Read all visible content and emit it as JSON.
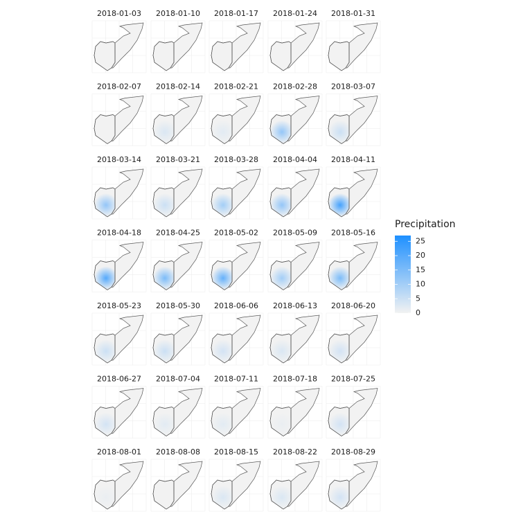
{
  "chart_data": {
    "type": "facet-map",
    "legend_title": "Precipitation",
    "colors": [
      "#f2f2f2",
      "#1e90ff"
    ],
    "lim": [
      0,
      27
    ],
    "ticks": [
      0,
      5,
      10,
      15,
      20,
      25
    ],
    "panels": [
      {
        "title": "2018-01-03",
        "peak": 0
      },
      {
        "title": "2018-01-10",
        "peak": 0
      },
      {
        "title": "2018-01-17",
        "peak": 0
      },
      {
        "title": "2018-01-24",
        "peak": 0
      },
      {
        "title": "2018-01-31",
        "peak": 0
      },
      {
        "title": "2018-02-07",
        "peak": 0
      },
      {
        "title": "2018-02-14",
        "peak": 3
      },
      {
        "title": "2018-02-21",
        "peak": 2
      },
      {
        "title": "2018-02-28",
        "peak": 12
      },
      {
        "title": "2018-03-07",
        "peak": 5
      },
      {
        "title": "2018-03-14",
        "peak": 12
      },
      {
        "title": "2018-03-21",
        "peak": 5
      },
      {
        "title": "2018-03-28",
        "peak": 10
      },
      {
        "title": "2018-04-04",
        "peak": 12
      },
      {
        "title": "2018-04-11",
        "peak": 22
      },
      {
        "title": "2018-04-18",
        "peak": 20
      },
      {
        "title": "2018-04-25",
        "peak": 15
      },
      {
        "title": "2018-05-02",
        "peak": 18
      },
      {
        "title": "2018-05-09",
        "peak": 10
      },
      {
        "title": "2018-05-16",
        "peak": 15
      },
      {
        "title": "2018-05-23",
        "peak": 5
      },
      {
        "title": "2018-05-30",
        "peak": 5
      },
      {
        "title": "2018-06-06",
        "peak": 4
      },
      {
        "title": "2018-06-13",
        "peak": 3
      },
      {
        "title": "2018-06-20",
        "peak": 4
      },
      {
        "title": "2018-06-27",
        "peak": 4
      },
      {
        "title": "2018-07-04",
        "peak": 2
      },
      {
        "title": "2018-07-11",
        "peak": 2
      },
      {
        "title": "2018-07-18",
        "peak": 1
      },
      {
        "title": "2018-07-25",
        "peak": 4
      },
      {
        "title": "2018-08-01",
        "peak": 1
      },
      {
        "title": "2018-08-08",
        "peak": 0
      },
      {
        "title": "2018-08-15",
        "peak": 3
      },
      {
        "title": "2018-08-22",
        "peak": 3
      },
      {
        "title": "2018-08-29",
        "peak": 4
      }
    ]
  }
}
